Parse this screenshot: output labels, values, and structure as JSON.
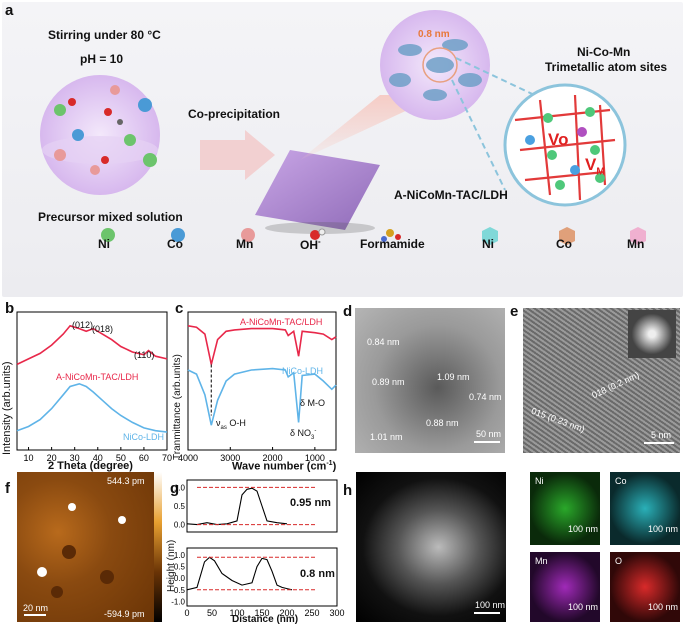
{
  "panel_labels": {
    "a": "a",
    "b": "b",
    "c": "c",
    "d": "d",
    "e": "e",
    "f": "f",
    "g": "g",
    "h": "h"
  },
  "panel_a": {
    "condition1": "Stirring under 80 °C",
    "condition2": "pH = 10",
    "precursor": "Precursor mixed solution",
    "process": "Co-precipitation",
    "product": "A-NiCoMn-TAC/LDH",
    "size": "0.8 nm",
    "sites_title1": "Ni-Co-Mn",
    "sites_title2": "Trimetallic atom sites",
    "vo": "Vo",
    "vm": "V",
    "vm_sub": "M",
    "legend": [
      "Ni",
      "Co",
      "Mn",
      "OH",
      "Formamide",
      "Ni",
      "Co",
      "Mn"
    ],
    "oh_sup": "-",
    "colors": {
      "ni": "#6cc46c",
      "co": "#4a9ad6",
      "mn": "#e89a9a",
      "ni_poly": "#7fd8d8",
      "co_poly": "#e0a07a",
      "mn_poly": "#f0b0d0"
    }
  },
  "chart_data": [
    {
      "type": "line",
      "panel": "b",
      "xlabel": "2 Theta (degree)",
      "ylabel": "Intensity (arb.units)",
      "xlim": [
        5,
        70
      ],
      "xticks": [
        10,
        20,
        30,
        40,
        50,
        60,
        70
      ],
      "series": [
        {
          "name": "A-NiCoMn-TAC/LDH",
          "color": "#e8284a",
          "x": [
            5,
            10,
            15,
            20,
            25,
            28,
            32,
            35,
            38,
            42,
            46,
            50,
            55,
            60,
            62,
            65,
            70
          ],
          "y": [
            0.62,
            0.66,
            0.7,
            0.76,
            0.84,
            0.9,
            0.88,
            0.86,
            0.88,
            0.84,
            0.8,
            0.75,
            0.71,
            0.69,
            0.72,
            0.68,
            0.66
          ]
        },
        {
          "name": "NiCo-LDH",
          "color": "#5fb4e8",
          "x": [
            5,
            10,
            15,
            20,
            25,
            28,
            32,
            35,
            38,
            42,
            46,
            50,
            55,
            60,
            65,
            70
          ],
          "y": [
            0.14,
            0.17,
            0.22,
            0.3,
            0.4,
            0.46,
            0.48,
            0.46,
            0.42,
            0.36,
            0.3,
            0.25,
            0.2,
            0.16,
            0.14,
            0.13
          ]
        }
      ],
      "annotations": [
        "(012)",
        "(018)",
        "(110)"
      ]
    },
    {
      "type": "line",
      "panel": "c",
      "xlabel": "Wave number (cm",
      "xlabel_sup": "-1",
      "xlabel_end": ")",
      "ylabel": "Tranmittance (arb.units)",
      "xlim": [
        4000,
        500
      ],
      "xticks": [
        4000,
        3000,
        2000,
        1000
      ],
      "series": [
        {
          "name": "A-NiCoMn-TAC/LDH",
          "color": "#e8284a",
          "x": [
            4000,
            3800,
            3600,
            3450,
            3300,
            3100,
            2900,
            2500,
            2000,
            1700,
            1630,
            1500,
            1384,
            1300,
            1000,
            800,
            600,
            500
          ],
          "y": [
            0.9,
            0.89,
            0.84,
            0.62,
            0.8,
            0.86,
            0.87,
            0.88,
            0.88,
            0.87,
            0.83,
            0.86,
            0.68,
            0.86,
            0.85,
            0.84,
            0.8,
            0.82
          ]
        },
        {
          "name": "NiCo-LDH",
          "color": "#5fb4e8",
          "x": [
            4000,
            3800,
            3600,
            3450,
            3300,
            3100,
            2900,
            2500,
            2000,
            1700,
            1630,
            1500,
            1384,
            1300,
            1000,
            800,
            600,
            500
          ],
          "y": [
            0.58,
            0.55,
            0.4,
            0.18,
            0.36,
            0.5,
            0.55,
            0.58,
            0.59,
            0.58,
            0.53,
            0.56,
            0.2,
            0.54,
            0.55,
            0.5,
            0.44,
            0.47
          ]
        }
      ],
      "annotations": [
        "ν",
        "as",
        "O-H",
        "δ M-O",
        "δ NO",
        "3",
        "-"
      ]
    },
    {
      "type": "line",
      "panel": "g",
      "xlabel": "Distance (nm)",
      "ylabel": "Height (nm)",
      "xticks": [
        0,
        50,
        100,
        150,
        200,
        250,
        300
      ],
      "upper_yticks": [
        1.0,
        0.5,
        0.0
      ],
      "lower_yticks": [
        1.0,
        0.5,
        0.0,
        -0.5,
        -1.0
      ],
      "series": [
        {
          "name": "0.95 nm",
          "x": [
            0,
            20,
            40,
            60,
            80,
            100,
            110,
            120,
            130,
            140,
            150,
            160,
            180,
            200
          ],
          "y": [
            0.02,
            0.0,
            0.05,
            0.0,
            0.02,
            0.1,
            0.8,
            0.95,
            0.98,
            0.9,
            0.5,
            0.1,
            0.05,
            0.02
          ]
        },
        {
          "name": "0.8 nm",
          "x": [
            0,
            20,
            35,
            45,
            55,
            70,
            90,
            110,
            130,
            140,
            150,
            160,
            170,
            180,
            190,
            200,
            210
          ],
          "y": [
            -0.5,
            -0.4,
            0.7,
            0.9,
            0.75,
            0.2,
            -0.1,
            -0.3,
            -0.2,
            0.5,
            0.85,
            0.8,
            0.3,
            -0.3,
            -0.4,
            -0.45,
            -0.5
          ]
        }
      ],
      "labels": [
        "0.95 nm",
        "0.8 nm"
      ]
    }
  ],
  "panel_b": {
    "peak012": "(012)",
    "peak018": "(018)",
    "peak110": "(110)",
    "s1": "A-NiCoMn-TAC/LDH",
    "s2": "NiCo-LDH",
    "xlabel": "2 Theta (degree)",
    "ylabel": "Intensity (arb.units)"
  },
  "panel_c": {
    "s1": "A-NiCoMn-TAC/LDH",
    "s2": "NiCo-LDH",
    "oh": "ν",
    "oh_sub": "as",
    "oh_rest": " O-H",
    "mo": "δ M-O",
    "no": "δ NO",
    "no_sub": "3",
    "no_sup": "-",
    "xlabel": "Wave number (cm",
    "xlabel_sup": "-1",
    "xlabel_end": ")",
    "ylabel": "Tranmittance (arb.units)"
  },
  "panel_d": {
    "labels": [
      "0.84 nm",
      "0.89 nm",
      "1.09 nm",
      "0.74 nm",
      "1.01 nm",
      "0.88 nm"
    ],
    "scale": "50 nm"
  },
  "panel_e": {
    "lattice1": "018 (0.2 nm)",
    "lattice2": "015 (0.23 nm)",
    "scale": "5 nm"
  },
  "panel_f": {
    "max": "544.3 pm",
    "min": "-594.9 pm",
    "scale": "20 nm"
  },
  "panel_g": {
    "label1": "0.95 nm",
    "label2": "0.8 nm",
    "xlabel": "Distance (nm)",
    "ylabel": "Height (nm)"
  },
  "panel_h": {
    "scale_main": "100 nm",
    "maps": [
      {
        "el": "Ni",
        "scale": "100 nm",
        "color": "#2aa82a"
      },
      {
        "el": "Co",
        "scale": "100 nm",
        "color": "#2ab0b8"
      },
      {
        "el": "Mn",
        "scale": "100 nm",
        "color": "#a02ab8"
      },
      {
        "el": "O",
        "scale": "100 nm",
        "color": "#d82a2a"
      }
    ]
  }
}
